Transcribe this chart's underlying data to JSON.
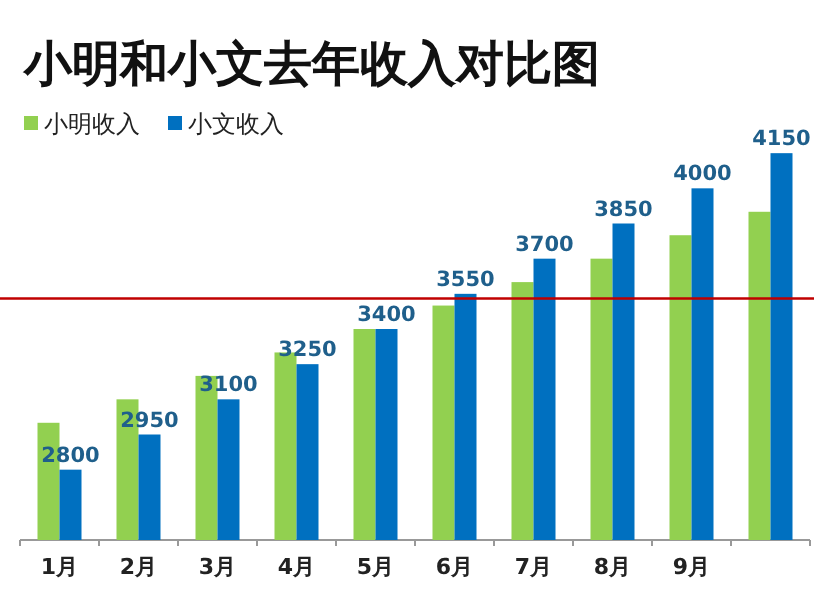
{
  "chart_data": {
    "type": "bar",
    "title": "小明和小文去年收入对比图",
    "categories": [
      "1月",
      "2月",
      "3月",
      "4月",
      "5月",
      "6月",
      "7月",
      "8月",
      "9月",
      null
    ],
    "series": [
      {
        "name": "小明收入",
        "color": "#92d050",
        "values": [
          3000,
          3100,
          3200,
          3300,
          3400,
          3500,
          3600,
          3700,
          3800,
          3900
        ]
      },
      {
        "name": "小文收入",
        "color": "#0070c0",
        "values": [
          2800,
          2950,
          3100,
          3250,
          3400,
          3550,
          3700,
          3850,
          4000,
          4150
        ],
        "value_labels": [
          "2800",
          "2950",
          "3100",
          "3250",
          "3400",
          "3550",
          "3700",
          "3850",
          "4000",
          "4150"
        ]
      }
    ],
    "ylim": [
      2500,
      4300
    ],
    "tick_labels": "x",
    "legend": "top left",
    "ref_lines": [
      {
        "axis": "y",
        "value": 3530,
        "color": "#c00000"
      }
    ]
  }
}
